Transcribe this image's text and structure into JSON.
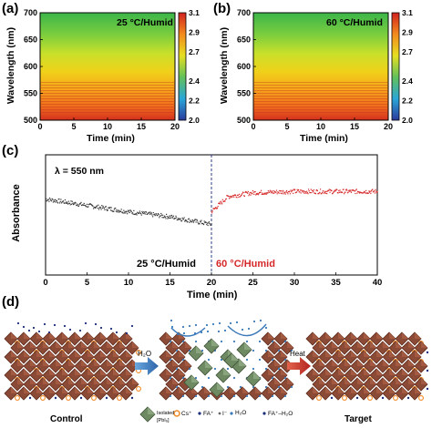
{
  "panels": {
    "a": {
      "letter": "(a)",
      "condition": "25 °C/Humid"
    },
    "b": {
      "letter": "(b)",
      "condition": "60 °C/Humid"
    },
    "c": {
      "letter": "(c)"
    },
    "d": {
      "letter": "(d)"
    }
  },
  "chart_data": [
    {
      "type": "heatmap",
      "panel": "a",
      "annotation": "25 °C/Humid",
      "xlabel": "Time (min)",
      "ylabel": "Wavelength (nm)",
      "xlim": [
        0,
        20
      ],
      "ylim": [
        500,
        700
      ],
      "x_ticks": [
        "0",
        "5",
        "10",
        "15",
        "20"
      ],
      "y_ticks": [
        "500",
        "550",
        "600",
        "650",
        "700"
      ],
      "colorbar": {
        "min": 2.0,
        "max": 3.1,
        "ticks": [
          "2.0",
          "2.2",
          "2.4",
          "2.7",
          "2.9",
          "3.1"
        ]
      }
    },
    {
      "type": "heatmap",
      "panel": "b",
      "annotation": "60 °C/Humid",
      "xlabel": "Time (min)",
      "ylabel": "Wavelength (nm)",
      "xlim": [
        0,
        20
      ],
      "ylim": [
        500,
        700
      ],
      "x_ticks": [
        "0",
        "5",
        "10",
        "15",
        "20"
      ],
      "y_ticks": [
        "500",
        "550",
        "600",
        "650",
        "700"
      ],
      "colorbar": {
        "min": 2.0,
        "max": 3.1,
        "ticks": [
          "2.0",
          "2.2",
          "2.4",
          "2.7",
          "2.9",
          "3.1"
        ]
      }
    },
    {
      "type": "scatter",
      "panel": "c",
      "annotation": "λ = 550 nm",
      "xlabel": "Time (min)",
      "ylabel": "Absorbance",
      "xlim": [
        0,
        40
      ],
      "x_ticks": [
        "0",
        "5",
        "10",
        "15",
        "20",
        "25",
        "30",
        "35",
        "40"
      ],
      "segment_labels": [
        "25 °C/Humid",
        "60 °C/Humid"
      ],
      "divider_x": 20,
      "series": [
        {
          "name": "25 °C/Humid",
          "color": "#333333",
          "x": [
            0,
            5,
            10,
            15,
            20
          ],
          "y": [
            1.0,
            0.95,
            0.9,
            0.86,
            0.8
          ]
        },
        {
          "name": "60 °C/Humid",
          "color": "#d62728",
          "x": [
            20,
            22,
            25,
            30,
            35,
            40
          ],
          "y": [
            0.9,
            1.02,
            1.05,
            1.06,
            1.06,
            1.06
          ]
        }
      ]
    }
  ],
  "schematic": {
    "labels": {
      "control": "Control",
      "target": "Target",
      "water_arrow": "H₂O",
      "heat_arrow": "Heat"
    },
    "legend": {
      "isolated_line1": "Isolated",
      "isolated_line2": "[PbI₆]",
      "cs": "Cs⁺",
      "fa": "FA⁺",
      "iodide": "I⁻",
      "water": "H₂O",
      "fa_water": "FA⁺–H₂O"
    },
    "colors": {
      "octahedron": "#8b4a35",
      "octahedron_dark": "#5e2c1e",
      "isolated": "#6e8a63",
      "cs": "#f08a24",
      "arrow_blue": "#3a78b8",
      "arrow_red": "#c8302a"
    }
  }
}
